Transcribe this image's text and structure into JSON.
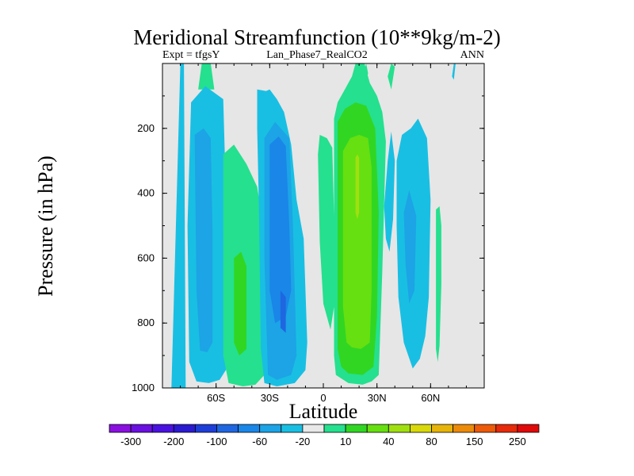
{
  "chart_data": {
    "type": "contour",
    "title": "Meridional Streamfunction (10**9kg/m-2)",
    "left_string": "Expt = tfgsY",
    "center_string": "Lan_Phase7_RealCO2",
    "right_string": "ANN",
    "xlabel": "Latitude",
    "ylabel": "Pressure (in hPa)",
    "xlim": [
      -90,
      90
    ],
    "ylim": [
      1000,
      0
    ],
    "x_ticks": [
      {
        "value": -60,
        "label": "60S"
      },
      {
        "value": -30,
        "label": "30S"
      },
      {
        "value": 0,
        "label": "0"
      },
      {
        "value": 30,
        "label": "30N"
      },
      {
        "value": 60,
        "label": "60N"
      }
    ],
    "y_ticks": [
      {
        "value": 200,
        "label": "200"
      },
      {
        "value": 400,
        "label": "400"
      },
      {
        "value": 600,
        "label": "600"
      },
      {
        "value": 800,
        "label": "800"
      },
      {
        "value": 1000,
        "label": "1000"
      }
    ],
    "background_color": "#e6e6e6",
    "colorbar": {
      "colors": [
        "#8a10e0",
        "#6a10e0",
        "#4a12e0",
        "#2a1ad0",
        "#1e3ed8",
        "#1f66e0",
        "#1a86e8",
        "#1ca4e6",
        "#19bfe2",
        "#e8e8e8",
        "#25e08e",
        "#31d623",
        "#66e010",
        "#a0e010",
        "#d8d80a",
        "#e6b40a",
        "#ec8a0a",
        "#ec5a0a",
        "#e62a0a",
        "#e00a0a"
      ],
      "labels": [
        {
          "after_index": 0,
          "text": "-300"
        },
        {
          "after_index": 2,
          "text": "-200"
        },
        {
          "after_index": 4,
          "text": "-100"
        },
        {
          "after_index": 6,
          "text": "-60"
        },
        {
          "after_index": 8,
          "text": "-20"
        },
        {
          "after_index": 10,
          "text": "10"
        },
        {
          "after_index": 12,
          "text": "40"
        },
        {
          "after_index": 14,
          "text": "80"
        },
        {
          "after_index": 16,
          "text": "150"
        },
        {
          "after_index": 18,
          "text": "250"
        }
      ]
    },
    "contour_regions": [
      {
        "level": "-20",
        "color": "#19bfe2",
        "polygon": [
          [
            -85,
            1000
          ],
          [
            -80,
            0
          ],
          [
            -78,
            0
          ],
          [
            -77,
            1000
          ]
        ]
      },
      {
        "level": "10",
        "color": "#25e08e",
        "polygon": [
          [
            -70,
            80
          ],
          [
            -68,
            0
          ],
          [
            -63,
            0
          ],
          [
            -61,
            80
          ]
        ]
      },
      {
        "level": "-20",
        "color": "#19bfe2",
        "polygon": [
          [
            -74,
            120
          ],
          [
            -66,
            70
          ],
          [
            -56,
            110
          ],
          [
            -54,
            500
          ],
          [
            -54,
            940
          ],
          [
            -58,
            975
          ],
          [
            -64,
            985
          ],
          [
            -71,
            980
          ],
          [
            -75,
            920
          ],
          [
            -76,
            500
          ]
        ]
      },
      {
        "level": "-60",
        "color": "#1ca4e6",
        "polygon": [
          [
            -72,
            220
          ],
          [
            -67,
            200
          ],
          [
            -63,
            230
          ],
          [
            -62,
            520
          ],
          [
            -62,
            860
          ],
          [
            -65,
            890
          ],
          [
            -69,
            885
          ],
          [
            -71,
            700
          ]
        ]
      },
      {
        "level": "10",
        "color": "#25e08e",
        "polygon": [
          [
            -56,
            280
          ],
          [
            -50,
            250
          ],
          [
            -43,
            310
          ],
          [
            -37,
            380
          ],
          [
            -33,
            520
          ],
          [
            -33,
            960
          ],
          [
            -38,
            990
          ],
          [
            -45,
            995
          ],
          [
            -53,
            985
          ],
          [
            -56,
            900
          ]
        ]
      },
      {
        "level": "40",
        "color": "#31d623",
        "polygon": [
          [
            -50,
            600
          ],
          [
            -46,
            580
          ],
          [
            -43,
            625
          ],
          [
            -43,
            880
          ],
          [
            -47,
            900
          ],
          [
            -50,
            860
          ]
        ]
      },
      {
        "level": "-20",
        "color": "#19bfe2",
        "polygon": [
          [
            -37,
            80
          ],
          [
            -32,
            85
          ],
          [
            -30,
            80
          ],
          [
            -26,
            110
          ],
          [
            -22,
            150
          ],
          [
            -18,
            250
          ],
          [
            -15,
            420
          ],
          [
            -11,
            540
          ],
          [
            -9,
            860
          ],
          [
            -10,
            945
          ],
          [
            -16,
            985
          ],
          [
            -26,
            995
          ],
          [
            -33,
            985
          ],
          [
            -35,
            880
          ],
          [
            -36,
            450
          ],
          [
            -37,
            200
          ]
        ]
      },
      {
        "level": "-60",
        "color": "#1ca4e6",
        "polygon": [
          [
            -33,
            230
          ],
          [
            -27,
            180
          ],
          [
            -19,
            230
          ],
          [
            -17,
            500
          ],
          [
            -15,
            900
          ],
          [
            -18,
            960
          ],
          [
            -26,
            975
          ],
          [
            -31,
            960
          ],
          [
            -33,
            600
          ]
        ]
      },
      {
        "level": "-60",
        "color": "#1a86e8",
        "polygon": [
          [
            -30,
            250
          ],
          [
            -25,
            225
          ],
          [
            -21,
            255
          ],
          [
            -19,
            500
          ],
          [
            -18,
            700
          ],
          [
            -21,
            780
          ],
          [
            -27,
            800
          ],
          [
            -30,
            700
          ]
        ]
      },
      {
        "level": "-100",
        "color": "#1f66e0",
        "polygon": [
          [
            -24,
            700
          ],
          [
            -21,
            720
          ],
          [
            -21,
            830
          ],
          [
            -24,
            815
          ]
        ]
      },
      {
        "level": "10",
        "color": "#25e08e",
        "polygon": [
          [
            -3,
            280
          ],
          [
            -2,
            220
          ],
          [
            2,
            230
          ],
          [
            5,
            260
          ],
          [
            6,
            470
          ],
          [
            6,
            750
          ],
          [
            4,
            820
          ],
          [
            0,
            740
          ],
          [
            -2,
            550
          ]
        ]
      },
      {
        "level": "10",
        "color": "#25e08e",
        "polygon": [
          [
            6,
            170
          ],
          [
            8,
            120
          ],
          [
            12,
            80
          ],
          [
            16,
            40
          ],
          [
            18,
            0
          ],
          [
            23,
            0
          ],
          [
            26,
            60
          ],
          [
            30,
            100
          ],
          [
            33,
            150
          ],
          [
            35,
            240
          ],
          [
            33,
            640
          ],
          [
            31,
            960
          ],
          [
            27,
            980
          ],
          [
            22,
            990
          ],
          [
            14,
            985
          ],
          [
            7,
            960
          ],
          [
            6,
            900
          ]
        ]
      },
      {
        "level": "40",
        "color": "#31d623",
        "polygon": [
          [
            8,
            180
          ],
          [
            12,
            140
          ],
          [
            18,
            120
          ],
          [
            24,
            130
          ],
          [
            29,
            200
          ],
          [
            31,
            460
          ],
          [
            30,
            780
          ],
          [
            28,
            935
          ],
          [
            22,
            960
          ],
          [
            14,
            955
          ],
          [
            10,
            935
          ],
          [
            8,
            880
          ]
        ]
      },
      {
        "level": "80",
        "color": "#66e010",
        "polygon": [
          [
            11,
            270
          ],
          [
            15,
            230
          ],
          [
            20,
            220
          ],
          [
            25,
            230
          ],
          [
            27,
            320
          ],
          [
            27,
            700
          ],
          [
            26,
            860
          ],
          [
            21,
            880
          ],
          [
            16,
            875
          ],
          [
            13,
            860
          ],
          [
            11,
            750
          ]
        ]
      },
      {
        "level": "80",
        "color": "#a0e010",
        "polygon": [
          [
            18,
            290
          ],
          [
            19,
            280
          ],
          [
            20,
            290
          ],
          [
            20,
            460
          ],
          [
            19,
            480
          ],
          [
            18,
            460
          ]
        ]
      },
      {
        "level": "10",
        "color": "#25e08e",
        "polygon": [
          [
            23,
            20
          ],
          [
            24,
            0
          ],
          [
            25,
            30
          ],
          [
            24,
            60
          ]
        ]
      },
      {
        "level": "10",
        "color": "#25e08e",
        "polygon": [
          [
            36,
            40
          ],
          [
            38,
            0
          ],
          [
            40,
            10
          ],
          [
            38,
            80
          ]
        ]
      },
      {
        "level": "-20",
        "color": "#19bfe2",
        "polygon": [
          [
            34,
            440
          ],
          [
            36,
            300
          ],
          [
            38,
            210
          ],
          [
            40,
            300
          ],
          [
            39,
            480
          ],
          [
            37,
            580
          ],
          [
            35,
            540
          ]
        ]
      },
      {
        "level": "-20",
        "color": "#19bfe2",
        "polygon": [
          [
            41,
            300
          ],
          [
            44,
            220
          ],
          [
            49,
            200
          ],
          [
            53,
            170
          ],
          [
            58,
            230
          ],
          [
            60,
            420
          ],
          [
            59,
            720
          ],
          [
            57,
            840
          ],
          [
            54,
            910
          ],
          [
            50,
            940
          ],
          [
            45,
            860
          ],
          [
            42,
            720
          ],
          [
            41,
            500
          ]
        ]
      },
      {
        "level": "-60",
        "color": "#1ca4e6",
        "polygon": [
          [
            45,
            460
          ],
          [
            48,
            390
          ],
          [
            52,
            470
          ],
          [
            51,
            700
          ],
          [
            48,
            740
          ],
          [
            46,
            620
          ]
        ]
      },
      {
        "level": "10",
        "color": "#25e08e",
        "polygon": [
          [
            63,
            450
          ],
          [
            65,
            440
          ],
          [
            66,
            500
          ],
          [
            66,
            680
          ],
          [
            65,
            870
          ],
          [
            64,
            920
          ],
          [
            63,
            880
          ]
        ]
      },
      {
        "level": "-20",
        "color": "#19bfe2",
        "polygon": [
          [
            73,
            0
          ],
          [
            74,
            0
          ],
          [
            73,
            50
          ],
          [
            72,
            40
          ]
        ]
      }
    ]
  }
}
